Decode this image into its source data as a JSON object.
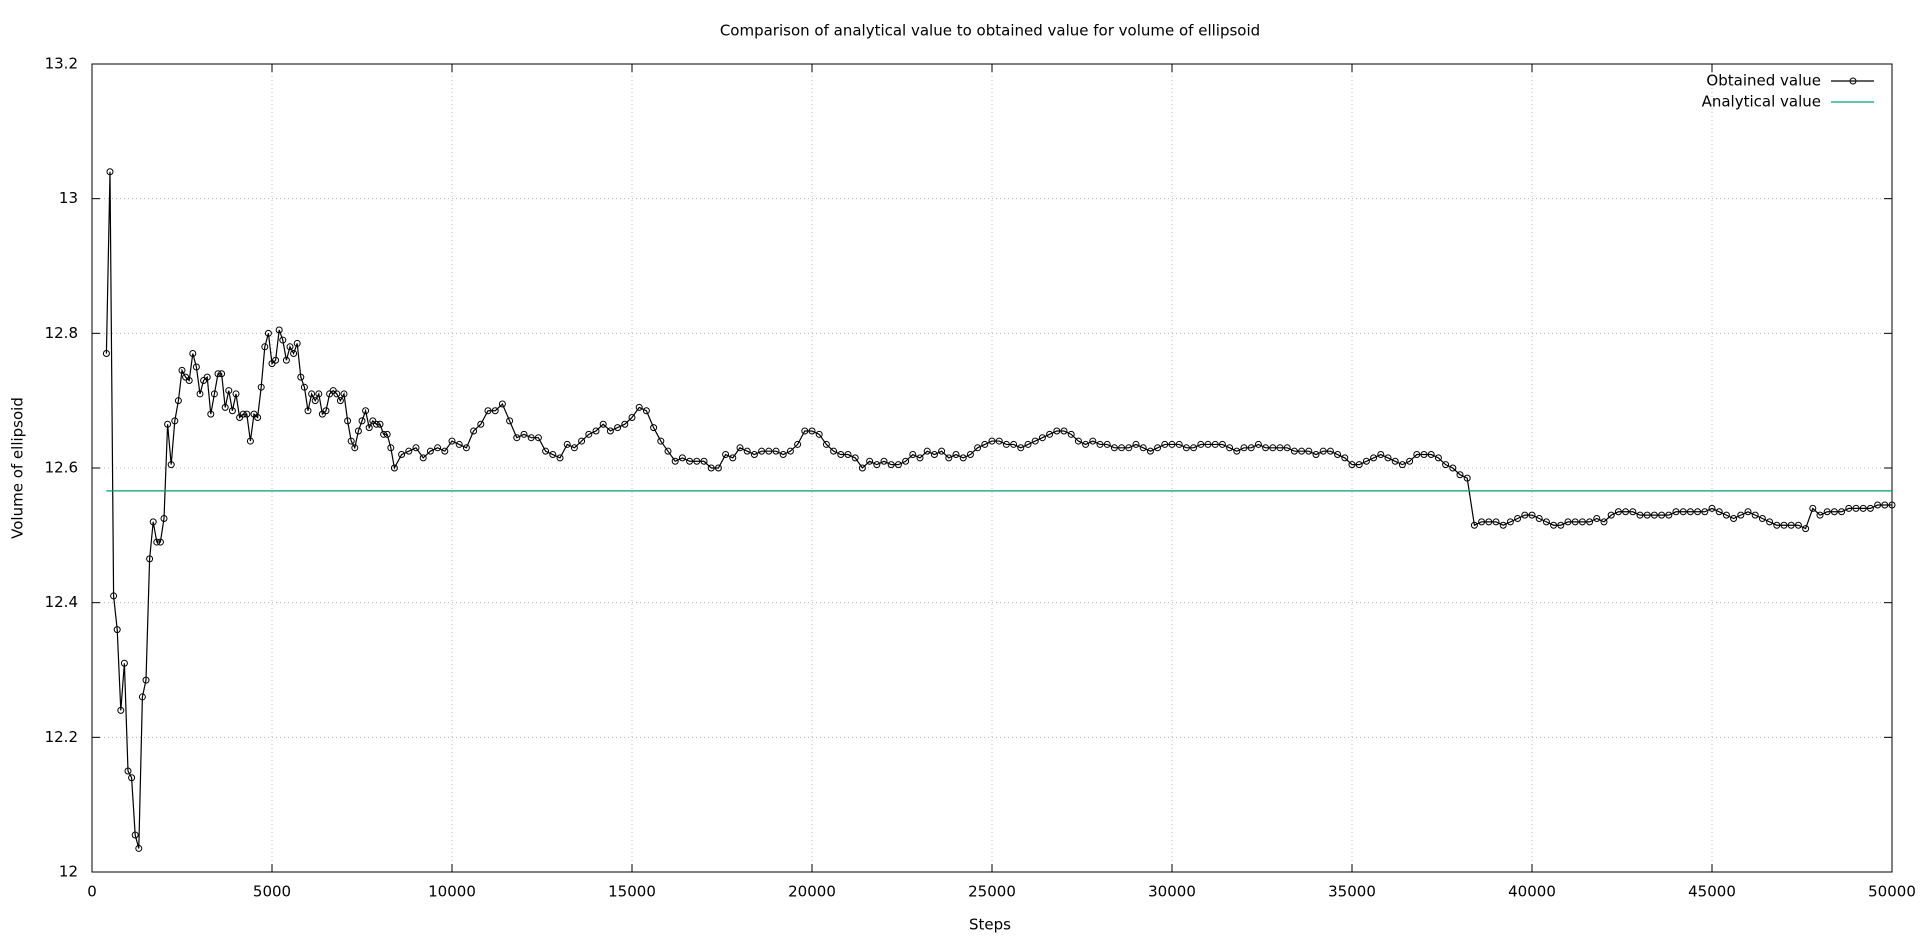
{
  "chart_data": {
    "type": "line",
    "title": "Comparison of analytical value to obtained value for volume of ellipsoid",
    "xlabel": "Steps",
    "ylabel": "Volume of ellipsoid",
    "xlim": [
      0,
      50000
    ],
    "xticks": [
      0,
      5000,
      10000,
      15000,
      20000,
      25000,
      30000,
      35000,
      40000,
      45000,
      50000
    ],
    "ylim": [
      12,
      13.2
    ],
    "yticks": [
      12,
      12.2,
      12.4,
      12.6,
      12.8,
      13,
      13.2
    ],
    "grid": true,
    "legend": "top right",
    "series": [
      {
        "name": "Obtained value",
        "color": "#000000",
        "marker": "circle",
        "x": [
          400,
          500,
          600,
          700,
          800,
          900,
          1000,
          1100,
          1200,
          1300,
          1400,
          1500,
          1600,
          1700,
          1800,
          1900,
          2000,
          2100,
          2200,
          2300,
          2400,
          2500,
          2600,
          2700,
          2800,
          2900,
          3000,
          3100,
          3200,
          3300,
          3400,
          3500,
          3600,
          3700,
          3800,
          3900,
          4000,
          4100,
          4200,
          4300,
          4400,
          4500,
          4600,
          4700,
          4800,
          4900,
          5000,
          5100,
          5200,
          5300,
          5400,
          5500,
          5600,
          5700,
          5800,
          5900,
          6000,
          6100,
          6200,
          6300,
          6400,
          6500,
          6600,
          6700,
          6800,
          6900,
          7000,
          7100,
          7200,
          7300,
          7400,
          7500,
          7600,
          7700,
          7800,
          7900,
          8000,
          8100,
          8200,
          8300,
          8400,
          8600,
          8800,
          9000,
          9200,
          9400,
          9600,
          9800,
          10000,
          10200,
          10400,
          10600,
          10800,
          11000,
          11200,
          11400,
          11600,
          11800,
          12000,
          12200,
          12400,
          12600,
          12800,
          13000,
          13200,
          13400,
          13600,
          13800,
          14000,
          14200,
          14400,
          14600,
          14800,
          15000,
          15200,
          15400,
          15600,
          15800,
          16000,
          16200,
          16400,
          16600,
          16800,
          17000,
          17200,
          17400,
          17600,
          17800,
          18000,
          18200,
          18400,
          18600,
          18800,
          19000,
          19200,
          19400,
          19600,
          19800,
          20000,
          20200,
          20400,
          20600,
          20800,
          21000,
          21200,
          21400,
          21600,
          21800,
          22000,
          22200,
          22400,
          22600,
          22800,
          23000,
          23200,
          23400,
          23600,
          23800,
          24000,
          24200,
          24400,
          24600,
          24800,
          25000,
          25200,
          25400,
          25600,
          25800,
          26000,
          26200,
          26400,
          26600,
          26800,
          27000,
          27200,
          27400,
          27600,
          27800,
          28000,
          28200,
          28400,
          28600,
          28800,
          29000,
          29200,
          29400,
          29600,
          29800,
          30000,
          30200,
          30400,
          30600,
          30800,
          31000,
          31200,
          31400,
          31600,
          31800,
          32000,
          32200,
          32400,
          32600,
          32800,
          33000,
          33200,
          33400,
          33600,
          33800,
          34000,
          34200,
          34400,
          34600,
          34800,
          35000,
          35200,
          35400,
          35600,
          35800,
          36000,
          36200,
          36400,
          36600,
          36800,
          37000,
          37200,
          37400,
          37600,
          37800,
          38000,
          38200,
          38400,
          38600,
          38800,
          39000,
          39200,
          39400,
          39600,
          39800,
          40000,
          40200,
          40400,
          40600,
          40800,
          41000,
          41200,
          41400,
          41600,
          41800,
          42000,
          42200,
          42400,
          42600,
          42800,
          43000,
          43200,
          43400,
          43600,
          43800,
          44000,
          44200,
          44400,
          44600,
          44800,
          45000,
          45200,
          45400,
          45600,
          45800,
          46000,
          46200,
          46400,
          46600,
          46800,
          47000,
          47200,
          47400,
          47600,
          47800,
          48000,
          48200,
          48400,
          48600,
          48800,
          49000,
          49200,
          49400,
          49600,
          49800,
          50000
        ],
        "values": [
          12.77,
          13.04,
          12.41,
          12.36,
          12.24,
          12.31,
          12.15,
          12.14,
          12.055,
          12.035,
          12.26,
          12.285,
          12.465,
          12.52,
          12.49,
          12.49,
          12.525,
          12.665,
          12.605,
          12.67,
          12.7,
          12.745,
          12.735,
          12.73,
          12.77,
          12.75,
          12.71,
          12.73,
          12.735,
          12.68,
          12.71,
          12.74,
          12.74,
          12.69,
          12.715,
          12.685,
          12.71,
          12.675,
          12.68,
          12.68,
          12.64,
          12.68,
          12.675,
          12.72,
          12.78,
          12.8,
          12.755,
          12.76,
          12.805,
          12.79,
          12.76,
          12.78,
          12.77,
          12.785,
          12.735,
          12.72,
          12.685,
          12.71,
          12.7,
          12.71,
          12.68,
          12.685,
          12.71,
          12.715,
          12.71,
          12.7,
          12.71,
          12.67,
          12.64,
          12.63,
          12.655,
          12.67,
          12.685,
          12.66,
          12.67,
          12.665,
          12.665,
          12.65,
          12.65,
          12.63,
          12.6,
          12.62,
          12.625,
          12.63,
          12.615,
          12.625,
          12.63,
          12.625,
          12.64,
          12.635,
          12.63,
          12.655,
          12.665,
          12.685,
          12.685,
          12.695,
          12.67,
          12.645,
          12.65,
          12.645,
          12.645,
          12.625,
          12.62,
          12.615,
          12.635,
          12.63,
          12.64,
          12.65,
          12.655,
          12.665,
          12.655,
          12.66,
          12.665,
          12.675,
          12.69,
          12.685,
          12.66,
          12.64,
          12.625,
          12.61,
          12.615,
          12.61,
          12.61,
          12.61,
          12.6,
          12.6,
          12.62,
          12.615,
          12.63,
          12.625,
          12.62,
          12.625,
          12.625,
          12.625,
          12.62,
          12.625,
          12.635,
          12.655,
          12.655,
          12.65,
          12.635,
          12.625,
          12.62,
          12.62,
          12.615,
          12.6,
          12.61,
          12.605,
          12.61,
          12.605,
          12.605,
          12.61,
          12.62,
          12.615,
          12.625,
          12.62,
          12.625,
          12.615,
          12.62,
          12.615,
          12.62,
          12.63,
          12.635,
          12.64,
          12.64,
          12.635,
          12.635,
          12.63,
          12.635,
          12.64,
          12.645,
          12.65,
          12.655,
          12.655,
          12.65,
          12.64,
          12.635,
          12.64,
          12.635,
          12.635,
          12.63,
          12.63,
          12.63,
          12.635,
          12.63,
          12.625,
          12.63,
          12.635,
          12.635,
          12.635,
          12.63,
          12.63,
          12.635,
          12.635,
          12.635,
          12.635,
          12.63,
          12.625,
          12.63,
          12.63,
          12.635,
          12.63,
          12.63,
          12.63,
          12.63,
          12.625,
          12.625,
          12.625,
          12.62,
          12.625,
          12.625,
          12.62,
          12.615,
          12.605,
          12.605,
          12.61,
          12.615,
          12.62,
          12.615,
          12.61,
          12.605,
          12.61,
          12.62,
          12.62,
          12.62,
          12.615,
          12.605,
          12.6,
          12.59,
          12.585,
          12.515,
          12.52,
          12.52,
          12.52,
          12.515,
          12.52,
          12.525,
          12.53,
          12.53,
          12.525,
          12.52,
          12.515,
          12.515,
          12.52,
          12.52,
          12.52,
          12.52,
          12.525,
          12.52,
          12.53,
          12.535,
          12.535,
          12.535,
          12.53,
          12.53,
          12.53,
          12.53,
          12.53,
          12.535,
          12.535,
          12.535,
          12.535,
          12.535,
          12.54,
          12.535,
          12.53,
          12.525,
          12.53,
          12.535,
          12.53,
          12.525,
          12.52,
          12.515,
          12.515,
          12.515,
          12.515,
          12.51,
          12.54,
          12.53,
          12.535,
          12.535,
          12.535,
          12.54,
          12.54,
          12.54,
          12.54,
          12.545,
          12.545,
          12.545
        ]
      },
      {
        "name": "Analytical value",
        "color": "#009e73",
        "x": [
          400,
          50000
        ],
        "values": [
          12.566,
          12.566
        ]
      }
    ]
  }
}
